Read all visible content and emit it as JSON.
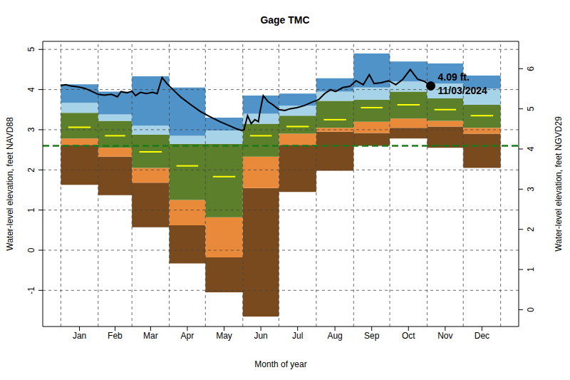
{
  "chart_data": {
    "type": "area",
    "title": "Gage TMC",
    "x_label": "Month of year",
    "y_label": "Water-level elevation, feet NAVD88",
    "y2_label": "Water-level elevation, feet NGVD29",
    "xlim": [
      -15,
      380
    ],
    "xticks": [
      {
        "value": 15.5,
        "label": "Jan"
      },
      {
        "value": 45,
        "label": "Feb"
      },
      {
        "value": 74.5,
        "label": "Mar"
      },
      {
        "value": 105,
        "label": "Apr"
      },
      {
        "value": 135.5,
        "label": "May"
      },
      {
        "value": 166,
        "label": "Jun"
      },
      {
        "value": 196.5,
        "label": "Jul"
      },
      {
        "value": 227.5,
        "label": "Aug"
      },
      {
        "value": 258,
        "label": "Sep"
      },
      {
        "value": 288.5,
        "label": "Oct"
      },
      {
        "value": 319,
        "label": "Nov"
      },
      {
        "value": 349.5,
        "label": "Dec"
      }
    ],
    "month_starts": [
      0,
      31,
      59,
      90,
      120,
      151,
      181,
      212,
      243,
      273,
      304,
      334,
      365
    ],
    "ylim": [
      -1.9,
      5.2
    ],
    "yticks": [
      -1,
      0,
      1,
      2,
      3,
      4,
      5
    ],
    "y2lim": [
      -0.42,
      6.68
    ],
    "y2ticks": [
      0,
      1,
      2,
      3,
      4,
      5,
      6
    ],
    "grid": true,
    "bands": [
      {
        "color": "#7a4a1f",
        "lower": [
          1.63,
          1.37,
          0.57,
          -0.33,
          -1.05,
          -1.65,
          1.45,
          1.98,
          2.6,
          2.78,
          2.55,
          2.05
        ],
        "upper": [
          2.62,
          2.33,
          1.68,
          0.62,
          -0.18,
          1.55,
          2.62,
          2.95,
          2.92,
          3.05,
          3.08,
          2.9
        ]
      },
      {
        "color": "#e98a3a",
        "lower": [
          2.62,
          2.33,
          1.68,
          0.62,
          -0.18,
          1.55,
          2.62,
          2.95,
          2.92,
          3.05,
          3.08,
          2.9
        ],
        "upper": [
          2.78,
          2.55,
          2.05,
          1.25,
          0.82,
          2.33,
          2.9,
          3.05,
          3.2,
          3.28,
          3.22,
          3.05
        ]
      },
      {
        "color": "#5b7f2a",
        "lower": [
          2.78,
          2.55,
          2.05,
          1.25,
          0.82,
          2.33,
          2.9,
          3.05,
          3.2,
          3.28,
          3.22,
          3.05
        ],
        "upper": [
          3.42,
          3.22,
          2.88,
          2.65,
          2.65,
          3.15,
          3.35,
          3.72,
          3.75,
          3.95,
          3.78,
          3.62
        ]
      },
      {
        "color": "#a6d3e8",
        "lower": [
          3.42,
          3.22,
          2.88,
          2.65,
          2.65,
          3.15,
          3.35,
          3.72,
          3.75,
          3.95,
          3.78,
          3.62
        ],
        "upper": [
          3.67,
          3.38,
          3.1,
          2.85,
          2.98,
          3.4,
          3.6,
          3.95,
          4.05,
          4.2,
          4.15,
          4.02
        ]
      },
      {
        "color": "#5093c8",
        "lower": [
          3.67,
          3.38,
          3.1,
          2.85,
          2.98,
          3.4,
          3.6,
          3.95,
          4.05,
          4.2,
          4.15,
          4.02
        ],
        "upper": [
          4.13,
          3.95,
          4.33,
          4.05,
          3.3,
          3.85,
          3.9,
          4.28,
          4.9,
          4.7,
          4.65,
          4.35
        ]
      }
    ],
    "median": {
      "color": "#ffff00",
      "values": [
        3.06,
        2.85,
        2.45,
        2.1,
        1.83,
        2.85,
        3.08,
        3.25,
        3.55,
        3.62,
        3.5,
        3.35
      ]
    },
    "series": [
      {
        "color": "#000000",
        "x": [
          0,
          4,
          8,
          14,
          20,
          26,
          31,
          36,
          42,
          47,
          50,
          55,
          59,
          62,
          66,
          71,
          76,
          80,
          84,
          88,
          93,
          100,
          108,
          116,
          124,
          132,
          140,
          146,
          150,
          152,
          155,
          158,
          161,
          164,
          165,
          168,
          172,
          176,
          181,
          186,
          190,
          196,
          202,
          208,
          214,
          219,
          224,
          228,
          234,
          240,
          245,
          251,
          256,
          260,
          266,
          272,
          278,
          284,
          290,
          296,
          302,
          307
        ],
        "values": [
          4.1,
          4.12,
          4.09,
          4.07,
          4.03,
          3.95,
          3.88,
          3.86,
          3.88,
          3.82,
          3.95,
          3.92,
          3.96,
          3.85,
          3.93,
          3.9,
          3.93,
          3.9,
          4.3,
          4.15,
          4.0,
          3.8,
          3.62,
          3.45,
          3.32,
          3.2,
          3.1,
          3.02,
          2.98,
          3.0,
          3.35,
          3.15,
          3.25,
          3.2,
          3.4,
          3.85,
          3.7,
          3.62,
          3.5,
          3.48,
          3.52,
          3.55,
          3.6,
          3.68,
          3.75,
          3.9,
          4.0,
          3.95,
          4.05,
          4.08,
          4.22,
          4.12,
          4.37,
          4.15,
          4.17,
          4.22,
          4.12,
          4.26,
          4.5,
          4.26,
          4.2,
          4.09
        ]
      }
    ],
    "reference_line": {
      "value": 2.6,
      "color": "#1b7a1b",
      "line_style": "dashed"
    },
    "annotation": {
      "x": 307,
      "y": 4.09,
      "text": [
        "4.09 ft.",
        "11/03/2024"
      ]
    }
  }
}
